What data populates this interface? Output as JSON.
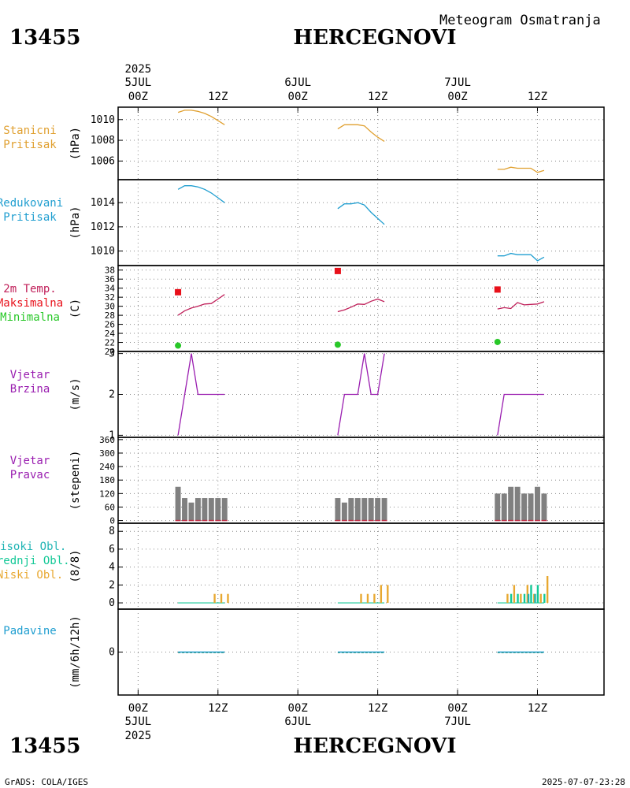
{
  "header": {
    "station_id": "13455",
    "station_name": "HERCEGNOVI",
    "product": "Meteogram Osmatranja"
  },
  "footer": {
    "station_id": "13455",
    "station_name": "HERCEGNOVI",
    "credit": "GrADS: COLA/IGES",
    "timestamp": "2025-07-07-23:28"
  },
  "time_axis": {
    "top_year": "2025",
    "bottom_year": "2025",
    "ticks": [
      {
        "t": 0,
        "hour": "00Z",
        "date": "5JUL"
      },
      {
        "t": 12,
        "hour": "12Z",
        "date": ""
      },
      {
        "t": 24,
        "hour": "00Z",
        "date": "6JUL"
      },
      {
        "t": 36,
        "hour": "12Z",
        "date": ""
      },
      {
        "t": 48,
        "hour": "00Z",
        "date": "7JUL"
      },
      {
        "t": 60,
        "hour": "12Z",
        "date": ""
      }
    ],
    "range_hours": [
      -3,
      70
    ]
  },
  "colors": {
    "station_pressure": "#e0a030",
    "reduced_pressure": "#1f9ed0",
    "temperature": "#c0205a",
    "tmax": "#e8101a",
    "tmin": "#28c828",
    "wind": "#9a1eb0",
    "bars": "#808080",
    "bar_base": "#c03048",
    "cloud_high": "#1fb4b4",
    "cloud_mid": "#12c896",
    "cloud_low": "#e8a830",
    "precip": "#1f9ed0"
  },
  "chart_data": [
    {
      "id": "station_pressure",
      "type": "line",
      "labels": [
        "Stanicni",
        "Pritisak"
      ],
      "ylabel": "(hPa)",
      "ylim": [
        1004.2,
        1011.2
      ],
      "yticks": [
        1006,
        1008,
        1010
      ],
      "series": [
        {
          "name": "Stanicni Pritisak",
          "points": [
            [
              6,
              1010.7
            ],
            [
              7,
              1010.9
            ],
            [
              8,
              1010.9
            ],
            [
              9,
              1010.8
            ],
            [
              10,
              1010.6
            ],
            [
              11,
              1010.3
            ],
            [
              12,
              1009.9
            ],
            [
              13,
              1009.5
            ]
          ]
        },
        {
          "name": "Stanicni Pritisak",
          "points": [
            [
              30,
              1009.1
            ],
            [
              31,
              1009.5
            ],
            [
              32,
              1009.5
            ],
            [
              33,
              1009.5
            ],
            [
              34,
              1009.4
            ],
            [
              35,
              1008.8
            ],
            [
              36,
              1008.3
            ],
            [
              37,
              1007.9
            ]
          ]
        },
        {
          "name": "Stanicni Pritisak",
          "points": [
            [
              54,
              1005.2
            ],
            [
              55,
              1005.2
            ],
            [
              56,
              1005.4
            ],
            [
              57,
              1005.3
            ],
            [
              58,
              1005.3
            ],
            [
              59,
              1005.3
            ],
            [
              60,
              1004.9
            ],
            [
              61,
              1005.1
            ]
          ]
        }
      ]
    },
    {
      "id": "reduced_pressure",
      "type": "line",
      "labels": [
        "Redukovani",
        "Pritisak"
      ],
      "ylabel": "(hPa)",
      "ylim": [
        1008.8,
        1015.9
      ],
      "yticks": [
        1010,
        1012,
        1014
      ],
      "series": [
        {
          "name": "Redukovani Pritisak",
          "points": [
            [
              6,
              1015.1
            ],
            [
              7,
              1015.4
            ],
            [
              8,
              1015.4
            ],
            [
              9,
              1015.3
            ],
            [
              10,
              1015.1
            ],
            [
              11,
              1014.8
            ],
            [
              12,
              1014.4
            ],
            [
              13,
              1014.0
            ]
          ]
        },
        {
          "name": "Redukovani Pritisak",
          "points": [
            [
              30,
              1013.5
            ],
            [
              31,
              1013.9
            ],
            [
              32,
              1013.9
            ],
            [
              33,
              1014.0
            ],
            [
              34,
              1013.8
            ],
            [
              35,
              1013.2
            ],
            [
              36,
              1012.7
            ],
            [
              37,
              1012.2
            ]
          ]
        },
        {
          "name": "Redukovani Pritisak",
          "points": [
            [
              54,
              1009.6
            ],
            [
              55,
              1009.6
            ],
            [
              56,
              1009.8
            ],
            [
              57,
              1009.7
            ],
            [
              58,
              1009.7
            ],
            [
              59,
              1009.7
            ],
            [
              60,
              1009.2
            ],
            [
              61,
              1009.5
            ]
          ]
        }
      ]
    },
    {
      "id": "temperature",
      "type": "line",
      "labels": [
        "2m Temp.",
        "Maksimalna",
        "Minimalna"
      ],
      "ylabel": "(C)",
      "ylim": [
        20,
        39
      ],
      "yticks": [
        20,
        22,
        24,
        26,
        28,
        30,
        32,
        34,
        36,
        38
      ],
      "series": [
        {
          "name": "2m Temp.",
          "points": [
            [
              6,
              28.0
            ],
            [
              7,
              29.0
            ],
            [
              8,
              29.6
            ],
            [
              9,
              30.0
            ],
            [
              10,
              30.5
            ],
            [
              11,
              30.6
            ],
            [
              12,
              31.6
            ],
            [
              13,
              32.6
            ]
          ]
        },
        {
          "name": "2m Temp.",
          "points": [
            [
              30,
              28.8
            ],
            [
              31,
              29.2
            ],
            [
              32,
              29.8
            ],
            [
              33,
              30.5
            ],
            [
              34,
              30.4
            ],
            [
              35,
              31.1
            ],
            [
              36,
              31.6
            ],
            [
              37,
              31.0
            ]
          ]
        },
        {
          "name": "2m Temp.",
          "points": [
            [
              54,
              29.4
            ],
            [
              55,
              29.7
            ],
            [
              56,
              29.5
            ],
            [
              57,
              30.8
            ],
            [
              58,
              30.3
            ],
            [
              59,
              30.4
            ],
            [
              60,
              30.5
            ],
            [
              61,
              31.0
            ]
          ]
        }
      ],
      "maximum": [
        [
          6,
          33.1
        ],
        [
          30,
          37.8
        ],
        [
          54,
          33.7
        ]
      ],
      "minimum": [
        [
          6,
          21.3
        ],
        [
          30,
          21.5
        ],
        [
          54,
          22.1
        ]
      ]
    },
    {
      "id": "wind_speed",
      "type": "line",
      "labels": [
        "Vjetar",
        "Brzina"
      ],
      "ylabel": "(m/s)",
      "ylim": [
        0.95,
        3.05
      ],
      "yticks": [
        1,
        2,
        3
      ],
      "series": [
        {
          "name": "Vjetar Brzina",
          "points": [
            [
              6,
              1
            ],
            [
              8,
              3
            ],
            [
              9,
              2
            ],
            [
              10,
              2
            ],
            [
              11,
              2
            ],
            [
              12,
              2
            ],
            [
              13,
              2
            ]
          ]
        },
        {
          "name": "Vjetar Brzina",
          "points": [
            [
              30,
              1
            ],
            [
              31,
              2
            ],
            [
              32,
              2
            ],
            [
              33,
              2
            ],
            [
              34,
              3
            ],
            [
              35,
              2
            ],
            [
              36,
              2
            ],
            [
              37,
              3
            ]
          ]
        },
        {
          "name": "Vjetar Brzina",
          "points": [
            [
              54,
              1
            ],
            [
              55,
              2
            ],
            [
              56,
              2
            ],
            [
              57,
              2
            ],
            [
              58,
              2
            ],
            [
              59,
              2
            ],
            [
              60,
              2
            ],
            [
              61,
              2
            ]
          ]
        }
      ]
    },
    {
      "id": "wind_direction",
      "type": "bar",
      "labels": [
        "Vjetar",
        "Pravac"
      ],
      "ylabel": "(stepeni)",
      "ylim": [
        -12,
        370
      ],
      "yticks": [
        0,
        60,
        120,
        180,
        240,
        300,
        360
      ],
      "series": [
        {
          "name": "Vjetar Pravac",
          "points": [
            [
              6,
              150
            ],
            [
              7,
              100
            ],
            [
              8,
              80
            ],
            [
              9,
              100
            ],
            [
              10,
              100
            ],
            [
              11,
              100
            ],
            [
              12,
              100
            ],
            [
              13,
              100
            ]
          ]
        },
        {
          "name": "Vjetar Pravac",
          "points": [
            [
              30,
              100
            ],
            [
              31,
              80
            ],
            [
              32,
              100
            ],
            [
              33,
              100
            ],
            [
              34,
              100
            ],
            [
              35,
              100
            ],
            [
              36,
              100
            ],
            [
              37,
              100
            ]
          ]
        },
        {
          "name": "Vjetar Pravac",
          "points": [
            [
              54,
              120
            ],
            [
              55,
              120
            ],
            [
              56,
              150
            ],
            [
              57,
              150
            ],
            [
              58,
              120
            ],
            [
              59,
              120
            ],
            [
              60,
              150
            ],
            [
              61,
              120
            ]
          ]
        }
      ]
    },
    {
      "id": "clouds",
      "type": "bar",
      "labels": [
        "Visoki Obl.",
        "Srednji Obl.",
        "Niski Obl."
      ],
      "ylabel": "(8/8)",
      "ylim": [
        -0.7,
        8.9
      ],
      "yticks": [
        0,
        2,
        4,
        6,
        8
      ],
      "series": [
        {
          "name": "Niski Obl.",
          "points": [
            [
              11,
              1
            ],
            [
              12,
              1
            ],
            [
              13,
              1
            ],
            [
              33,
              1
            ],
            [
              34,
              1
            ],
            [
              35,
              1
            ],
            [
              36,
              2
            ],
            [
              37,
              2
            ],
            [
              55,
              1
            ],
            [
              56,
              2
            ],
            [
              57,
              1
            ],
            [
              58,
              2
            ],
            [
              59,
              1
            ],
            [
              60,
              1
            ],
            [
              61,
              3
            ]
          ]
        },
        {
          "name": "Srednji Obl.",
          "points": [
            [
              56,
              1
            ],
            [
              57,
              1
            ],
            [
              58,
              1
            ],
            [
              59,
              2
            ],
            [
              60,
              2
            ],
            [
              61,
              1
            ]
          ]
        },
        {
          "name": "Visoki Obl.",
          "points": [
            [
              59,
              1
            ],
            [
              60,
              1
            ]
          ]
        }
      ]
    },
    {
      "id": "precipitation",
      "type": "bar",
      "labels": [
        "Padavine"
      ],
      "ylabel": "(mm/6h/12h)",
      "ylim": [
        -1,
        1
      ],
      "yticks": [
        0
      ],
      "series": [
        {
          "name": "Padavine",
          "points": [
            [
              6,
              0
            ],
            [
              13,
              0
            ],
            [
              30,
              0
            ],
            [
              37,
              0
            ],
            [
              54,
              0
            ],
            [
              61,
              0
            ]
          ]
        }
      ]
    }
  ]
}
